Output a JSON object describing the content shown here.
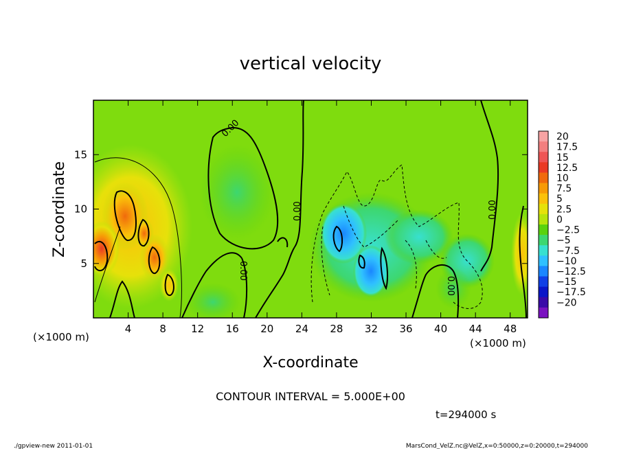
{
  "chart_data": {
    "type": "heatmap",
    "title": "vertical velocity",
    "xlabel": "X-coordinate",
    "ylabel": "Z-coordinate",
    "x_unit": "(×1000 m)",
    "y_unit": "(×1000 m)",
    "xlim": [
      0,
      50
    ],
    "ylim": [
      0,
      20
    ],
    "x_ticks": [
      "4",
      "8",
      "12",
      "16",
      "20",
      "24",
      "28",
      "32",
      "36",
      "40",
      "44",
      "48"
    ],
    "y_ticks": [
      "5",
      "10",
      "15"
    ],
    "colorbar": {
      "labels": [
        "20",
        "17.5",
        "15",
        "12.5",
        "10",
        "7.5",
        "5",
        "2.5",
        "0",
        "−2.5",
        "−5",
        "−7.5",
        "−10",
        "−12.5",
        "−15",
        "−17.5",
        "−20"
      ],
      "colors": [
        "#f7a3a3",
        "#f37f7f",
        "#ee5555",
        "#ea3a24",
        "#f06a0c",
        "#f79a06",
        "#fbc10a",
        "#e6e10a",
        "#b7e40c",
        "#5ad20e",
        "#3dd770",
        "#38e0cf",
        "#2fc0ff",
        "#1a86ff",
        "#1040e6",
        "#0a16c8",
        "#3a0aa8",
        "#7a12c0"
      ]
    },
    "contour_labels": [
      "0.00",
      "0.00",
      "0.00",
      "0.00",
      "0.00",
      "0.00"
    ],
    "contour_interval_text": "CONTOUR INTERVAL = 5.000E+00",
    "time_text": "t=294000 s",
    "field_summary": {
      "positive_max_region_x": [
        1,
        9
      ],
      "positive_max_value": 12,
      "negative_min_region_x": [
        26,
        36
      ],
      "negative_min_value": -8,
      "background_value": 0.5
    }
  },
  "footer": {
    "left": "./gpview-new   2011-01-01",
    "right": "MarsCond_VelZ.nc@VelZ,x=0:50000,z=0:20000,t=294000"
  }
}
